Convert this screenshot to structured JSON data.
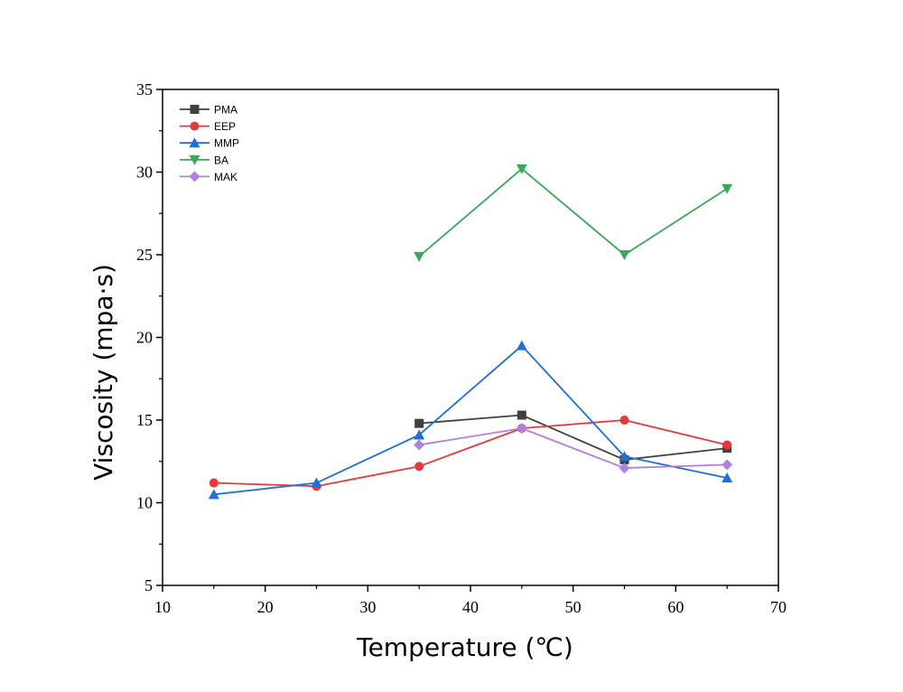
{
  "chart_data": {
    "type": "line",
    "title": "",
    "xlabel": "Temperature (℃)",
    "ylabel": "Viscosity (mpa·s)",
    "xlim": [
      10,
      70
    ],
    "ylim": [
      5,
      35
    ],
    "xticks": [
      10,
      20,
      30,
      40,
      50,
      60,
      70
    ],
    "yticks": [
      5,
      10,
      15,
      20,
      25,
      30,
      35
    ],
    "grid": false,
    "legend_position": "top-left",
    "series": [
      {
        "name": "PMA",
        "color": "#404040",
        "marker": "square",
        "x": [
          35,
          45,
          55,
          65
        ],
        "y": [
          14.8,
          15.3,
          12.6,
          13.3
        ]
      },
      {
        "name": "EEP",
        "color": "#e8383d",
        "marker": "circle",
        "x": [
          15,
          25,
          35,
          45,
          55,
          65
        ],
        "y": [
          11.2,
          11.0,
          12.2,
          14.5,
          15.0,
          13.5
        ]
      },
      {
        "name": "MMP",
        "color": "#1f6fd8",
        "marker": "triangle-up",
        "x": [
          15,
          25,
          35,
          45,
          55,
          65
        ],
        "y": [
          10.5,
          11.2,
          14.1,
          19.5,
          12.8,
          11.5
        ]
      },
      {
        "name": "BA",
        "color": "#3aa85a",
        "marker": "triangle-down",
        "x": [
          35,
          45,
          55,
          65
        ],
        "y": [
          24.9,
          30.2,
          25.0,
          29.0
        ]
      },
      {
        "name": "MAK",
        "color": "#b07fe0",
        "marker": "diamond",
        "x": [
          35,
          45,
          55,
          65
        ],
        "y": [
          13.5,
          14.5,
          12.1,
          12.3
        ]
      }
    ]
  }
}
